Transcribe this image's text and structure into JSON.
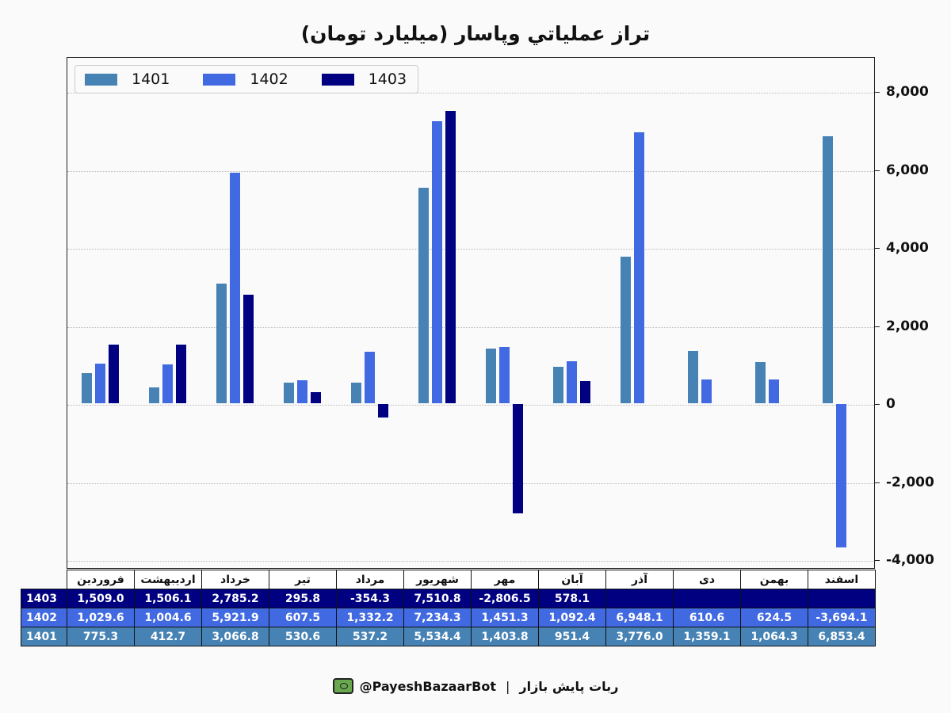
{
  "chart_data": {
    "type": "bar",
    "title": "تراز عملياتي وپاسار (ميليارد تومان)",
    "xlabel": "",
    "ylabel": "",
    "ylim": [
      -4200,
      8900
    ],
    "yticks": [
      8000,
      6000,
      4000,
      2000,
      0,
      -2000,
      -4000
    ],
    "ytick_labels": [
      "8,000",
      "6,000",
      "4,000",
      "2,000",
      "0",
      "-2,000",
      "-4,000"
    ],
    "y_axis_position": "right",
    "grid": "horizontal dotted",
    "legend_position": "upper left",
    "categories": [
      "فروردين",
      "ارديبهشت",
      "خرداد",
      "تير",
      "مرداد",
      "شهريور",
      "مهر",
      "آبان",
      "آذر",
      "دی",
      "بهمن",
      "اسفند"
    ],
    "series": [
      {
        "name": "1401",
        "color": "#4682b4",
        "values": [
          775.3,
          412.7,
          3066.8,
          530.6,
          537.2,
          5534.4,
          1403.8,
          951.4,
          3776.0,
          1359.1,
          1064.3,
          6853.4
        ]
      },
      {
        "name": "1402",
        "color": "#4169e1",
        "values": [
          1029.6,
          1004.6,
          5921.9,
          607.5,
          1332.2,
          7234.3,
          1451.3,
          1092.4,
          6948.1,
          610.6,
          624.5,
          -3694.1
        ]
      },
      {
        "name": "1403",
        "color": "#000080",
        "values": [
          1509.0,
          1506.1,
          2785.2,
          295.8,
          -354.3,
          7510.8,
          -2806.5,
          578.1,
          null,
          null,
          null,
          null
        ]
      }
    ]
  },
  "table": {
    "headers": [
      "فروردين",
      "ارديبهشت",
      "خرداد",
      "تير",
      "مرداد",
      "شهريور",
      "مهر",
      "آبان",
      "آذر",
      "دی",
      "بهمن",
      "اسفند"
    ],
    "rows": [
      {
        "label": "1403",
        "color": "#000080",
        "cells": [
          "1,509.0",
          "1,506.1",
          "2,785.2",
          "295.8",
          "-354.3",
          "7,510.8",
          "-2,806.5",
          "578.1",
          "",
          "",
          "",
          ""
        ]
      },
      {
        "label": "1402",
        "color": "#4169e1",
        "cells": [
          "1,029.6",
          "1,004.6",
          "5,921.9",
          "607.5",
          "1,332.2",
          "7,234.3",
          "1,451.3",
          "1,092.4",
          "6,948.1",
          "610.6",
          "624.5",
          "-3,694.1"
        ]
      },
      {
        "label": "1401",
        "color": "#4682b4",
        "cells": [
          "775.3",
          "412.7",
          "3,066.8",
          "530.6",
          "537.2",
          "5,534.4",
          "1,403.8",
          "951.4",
          "3,776.0",
          "1,359.1",
          "1,064.3",
          "6,853.4"
        ]
      }
    ]
  },
  "footer": {
    "icon": "bot-monitor-icon",
    "handle": "@PayeshBazaarBot",
    "separator": "|",
    "name": "ربات پایش بازار"
  }
}
